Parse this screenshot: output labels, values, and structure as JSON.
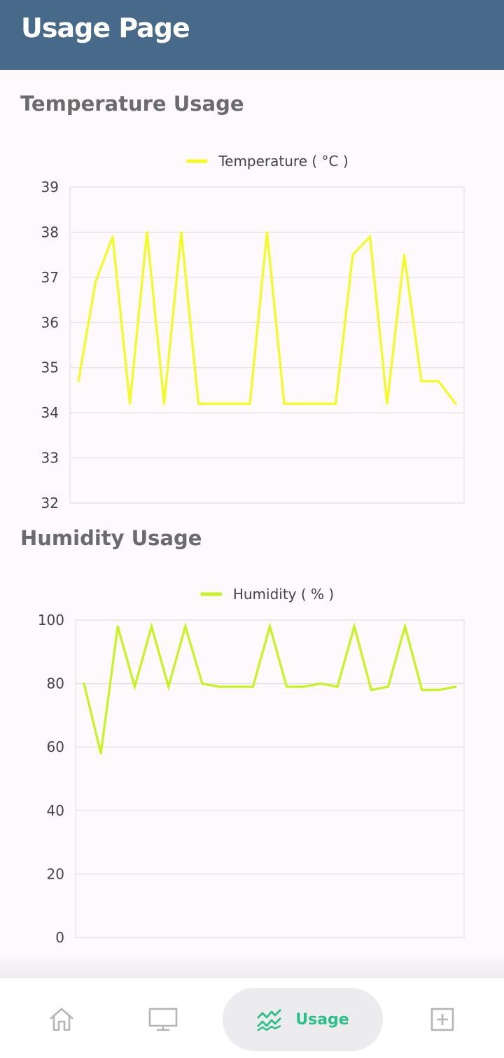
{
  "app_bar": {
    "title": "Usage Page",
    "background": "#476a8a"
  },
  "temperature": {
    "section_title": "Temperature Usage",
    "chart_data": {
      "type": "line",
      "title": "",
      "xlabel": "",
      "ylabel": "",
      "ylim": [
        32,
        39
      ],
      "y_ticks": [
        "39",
        "38",
        "37",
        "36",
        "35",
        "34",
        "33",
        "32"
      ],
      "grid": true,
      "legend": "top-center",
      "series": [
        {
          "name": "Temperature ( °C )",
          "color": "#f5fb1e",
          "values": [
            34.7,
            36.9,
            37.9,
            34.2,
            38.0,
            34.2,
            38.0,
            34.2,
            34.2,
            34.2,
            34.2,
            38.0,
            34.2,
            34.2,
            34.2,
            34.2,
            37.5,
            37.9,
            34.2,
            37.5,
            34.7,
            34.7,
            34.2
          ]
        }
      ]
    }
  },
  "humidity": {
    "section_title": "Humidity Usage",
    "chart_data": {
      "type": "line",
      "title": "",
      "xlabel": "",
      "ylabel": "",
      "ylim": [
        0,
        100
      ],
      "y_ticks": [
        "100",
        "80",
        "60",
        "40",
        "20",
        "0"
      ],
      "grid": true,
      "legend": "top-center",
      "series": [
        {
          "name": "Humidity ( % )",
          "color": "#c5f51d",
          "values": [
            80,
            58,
            98,
            79,
            98,
            79,
            98,
            80,
            79,
            79,
            79,
            98,
            79,
            79,
            80,
            79,
            98,
            78,
            79,
            98,
            78,
            78,
            79
          ]
        }
      ]
    }
  },
  "bottom_nav": {
    "items": [
      {
        "icon": "home-icon",
        "label": "",
        "selected": false
      },
      {
        "icon": "monitor-icon",
        "label": "",
        "selected": false
      },
      {
        "icon": "chart-icon",
        "label": "Usage",
        "selected": true
      },
      {
        "icon": "add-box-icon",
        "label": "",
        "selected": false
      }
    ],
    "accent": "#2bbf8a"
  }
}
